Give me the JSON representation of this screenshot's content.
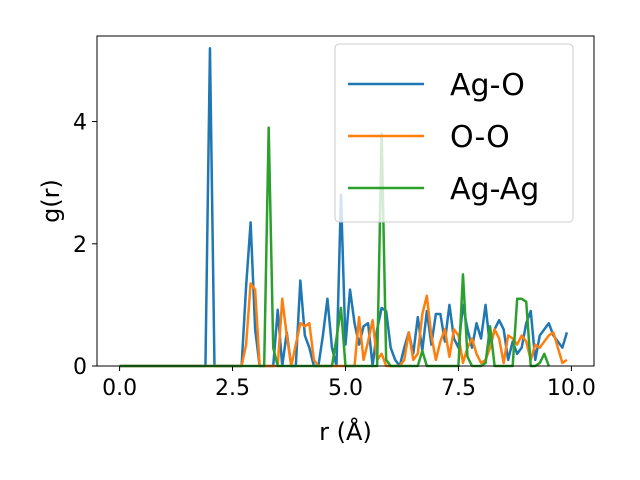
{
  "chart_data": {
    "type": "line",
    "xlabel": "r (Å)",
    "ylabel": "g(r)",
    "xlim": [
      -0.5,
      10.5
    ],
    "ylim": [
      0,
      5.4
    ],
    "xticks": [
      0.0,
      2.5,
      5.0,
      7.5,
      10.0
    ],
    "xtick_labels": [
      "0.0",
      "2.5",
      "5.0",
      "7.5",
      "10.0"
    ],
    "yticks": [
      0,
      2,
      4
    ],
    "ytick_labels": [
      "0",
      "2",
      "4"
    ],
    "grid": false,
    "legend_position": "top-right",
    "series": [
      {
        "name": "Ag-O",
        "color": "#1f77b4",
        "points": [
          [
            0.0,
            0
          ],
          [
            1.9,
            0
          ],
          [
            2.0,
            5.2
          ],
          [
            2.1,
            0
          ],
          [
            2.7,
            0
          ],
          [
            2.8,
            1.3
          ],
          [
            2.9,
            2.35
          ],
          [
            3.0,
            0.6
          ],
          [
            3.1,
            0
          ],
          [
            3.4,
            0
          ],
          [
            3.5,
            0.92
          ],
          [
            3.6,
            0
          ],
          [
            3.7,
            0.55
          ],
          [
            3.8,
            0
          ],
          [
            3.9,
            0
          ],
          [
            4.0,
            1.4
          ],
          [
            4.1,
            0.5
          ],
          [
            4.2,
            0.3
          ],
          [
            4.3,
            0
          ],
          [
            4.4,
            0
          ],
          [
            4.5,
            0.5
          ],
          [
            4.6,
            1.1
          ],
          [
            4.7,
            0.3
          ],
          [
            4.8,
            0
          ],
          [
            4.9,
            2.8
          ],
          [
            5.0,
            0.35
          ],
          [
            5.1,
            1.25
          ],
          [
            5.2,
            0.7
          ],
          [
            5.3,
            0.35
          ],
          [
            5.4,
            0.65
          ],
          [
            5.5,
            0.7
          ],
          [
            5.6,
            0
          ],
          [
            5.7,
            0.6
          ],
          [
            5.8,
            0.95
          ],
          [
            5.9,
            0.9
          ],
          [
            6.0,
            0.3
          ],
          [
            6.1,
            0.1
          ],
          [
            6.2,
            0
          ],
          [
            6.3,
            0.3
          ],
          [
            6.4,
            0.55
          ],
          [
            6.5,
            0.2
          ],
          [
            6.6,
            0.8
          ],
          [
            6.7,
            0.25
          ],
          [
            6.8,
            0.9
          ],
          [
            6.9,
            0.35
          ],
          [
            7.0,
            0.85
          ],
          [
            7.1,
            0.85
          ],
          [
            7.2,
            0.4
          ],
          [
            7.3,
            1.0
          ],
          [
            7.4,
            0.45
          ],
          [
            7.5,
            0.3
          ],
          [
            7.6,
            1.0
          ],
          [
            7.7,
            0.6
          ],
          [
            7.8,
            0.3
          ],
          [
            7.9,
            0.7
          ],
          [
            8.0,
            0.45
          ],
          [
            8.1,
            1.0
          ],
          [
            8.2,
            0.3
          ],
          [
            8.3,
            0.6
          ],
          [
            8.4,
            0.75
          ],
          [
            8.5,
            0.6
          ],
          [
            8.6,
            0.1
          ],
          [
            8.7,
            0.4
          ],
          [
            8.8,
            0.2
          ],
          [
            8.9,
            0.3
          ],
          [
            9.0,
            0.7
          ],
          [
            9.1,
            0.9
          ],
          [
            9.2,
            0.1
          ],
          [
            9.3,
            0.5
          ],
          [
            9.4,
            0.6
          ],
          [
            9.5,
            0.7
          ],
          [
            9.6,
            0.5
          ],
          [
            9.7,
            0.4
          ],
          [
            9.8,
            0.3
          ],
          [
            9.9,
            0.55
          ]
        ]
      },
      {
        "name": "O-O",
        "color": "#ff7f0e",
        "points": [
          [
            0.0,
            0
          ],
          [
            2.7,
            0
          ],
          [
            2.8,
            0.35
          ],
          [
            2.9,
            1.35
          ],
          [
            3.0,
            1.25
          ],
          [
            3.1,
            0
          ],
          [
            3.5,
            0
          ],
          [
            3.6,
            1.1
          ],
          [
            3.7,
            0.5
          ],
          [
            3.8,
            0
          ],
          [
            4.0,
            0.7
          ],
          [
            4.1,
            0.65
          ],
          [
            4.2,
            0.7
          ],
          [
            4.3,
            0.1
          ],
          [
            4.4,
            0
          ],
          [
            5.2,
            0
          ],
          [
            5.3,
            0.8
          ],
          [
            5.4,
            0.1
          ],
          [
            5.5,
            0.4
          ],
          [
            5.6,
            0.75
          ],
          [
            5.7,
            0.1
          ],
          [
            5.8,
            0.2
          ],
          [
            5.9,
            0
          ],
          [
            6.2,
            0
          ],
          [
            6.3,
            0.1
          ],
          [
            6.4,
            0.55
          ],
          [
            6.5,
            0.1
          ],
          [
            6.6,
            0.2
          ],
          [
            6.7,
            0.85
          ],
          [
            6.8,
            1.15
          ],
          [
            6.9,
            0.5
          ],
          [
            7.0,
            0.1
          ],
          [
            7.1,
            0.4
          ],
          [
            7.2,
            0.6
          ],
          [
            7.3,
            0.15
          ],
          [
            7.4,
            0.6
          ],
          [
            7.5,
            0.5
          ],
          [
            7.6,
            0.05
          ],
          [
            7.7,
            0.3
          ],
          [
            7.8,
            0.45
          ],
          [
            7.9,
            0.2
          ],
          [
            8.0,
            0.05
          ],
          [
            8.1,
            0.1
          ],
          [
            8.2,
            0.3
          ],
          [
            8.3,
            0.6
          ],
          [
            8.4,
            0.45
          ],
          [
            8.5,
            0.05
          ],
          [
            8.6,
            0.5
          ],
          [
            8.7,
            0.45
          ],
          [
            8.8,
            0.35
          ],
          [
            8.9,
            0.5
          ],
          [
            9.0,
            0.4
          ],
          [
            9.1,
            0.1
          ],
          [
            9.2,
            0.35
          ],
          [
            9.3,
            0.3
          ],
          [
            9.4,
            0.4
          ],
          [
            9.5,
            0.5
          ],
          [
            9.6,
            0.55
          ],
          [
            9.7,
            0.3
          ],
          [
            9.8,
            0.05
          ],
          [
            9.9,
            0.1
          ]
        ]
      },
      {
        "name": "Ag-Ag",
        "color": "#2ca02c",
        "points": [
          [
            0.0,
            0
          ],
          [
            3.2,
            0
          ],
          [
            3.3,
            3.9
          ],
          [
            3.4,
            0.3
          ],
          [
            3.5,
            0
          ],
          [
            4.7,
            0
          ],
          [
            4.8,
            0.45
          ],
          [
            4.9,
            0.95
          ],
          [
            5.0,
            0
          ],
          [
            5.7,
            0
          ],
          [
            5.8,
            3.8
          ],
          [
            5.9,
            0.1
          ],
          [
            6.0,
            0
          ],
          [
            6.6,
            0
          ],
          [
            6.7,
            0.25
          ],
          [
            6.8,
            0
          ],
          [
            7.5,
            0
          ],
          [
            7.6,
            1.5
          ],
          [
            7.7,
            0.15
          ],
          [
            7.8,
            0
          ],
          [
            8.0,
            0
          ],
          [
            8.1,
            0.05
          ],
          [
            8.2,
            0.65
          ],
          [
            8.3,
            0
          ],
          [
            8.7,
            0
          ],
          [
            8.8,
            1.1
          ],
          [
            8.9,
            1.1
          ],
          [
            9.0,
            1.05
          ],
          [
            9.1,
            0
          ],
          [
            9.2,
            0
          ],
          [
            9.3,
            0.05
          ],
          [
            9.4,
            0.2
          ],
          [
            9.5,
            0
          ]
        ]
      }
    ]
  }
}
